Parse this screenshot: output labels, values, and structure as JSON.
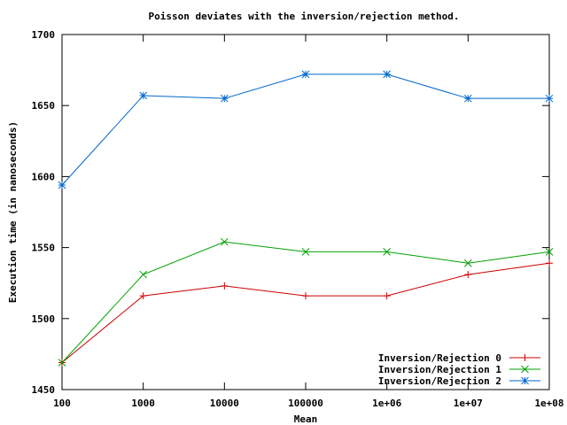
{
  "chart_data": {
    "type": "line",
    "title": "Poisson deviates with the inversion/rejection method.",
    "xlabel": "Mean",
    "ylabel": "Execution time (in nanoseconds)",
    "x_scale": "log",
    "categories": [
      "100",
      "1000",
      "10000",
      "100000",
      "1e+06",
      "1e+07",
      "1e+08"
    ],
    "x": [
      100,
      1000,
      10000,
      100000,
      1000000,
      10000000,
      100000000
    ],
    "ylim": [
      1450,
      1700
    ],
    "yticks": [
      1450,
      1500,
      1550,
      1600,
      1650,
      1700
    ],
    "grid": false,
    "legend_position": "bottom-right",
    "series": [
      {
        "name": "Inversion/Rejection 0",
        "color": "#cc0000",
        "marker": "plus",
        "values": [
          1469,
          1516,
          1523,
          1516,
          1516,
          1531,
          1539
        ]
      },
      {
        "name": "Inversion/Rejection 1",
        "color": "#00a000",
        "marker": "cross",
        "values": [
          1469,
          1531,
          1554,
          1547,
          1547,
          1539,
          1547
        ]
      },
      {
        "name": "Inversion/Rejection 2",
        "color": "#0066cc",
        "marker": "star",
        "values": [
          1594,
          1657,
          1655,
          1672,
          1672,
          1655,
          1655
        ]
      }
    ]
  }
}
